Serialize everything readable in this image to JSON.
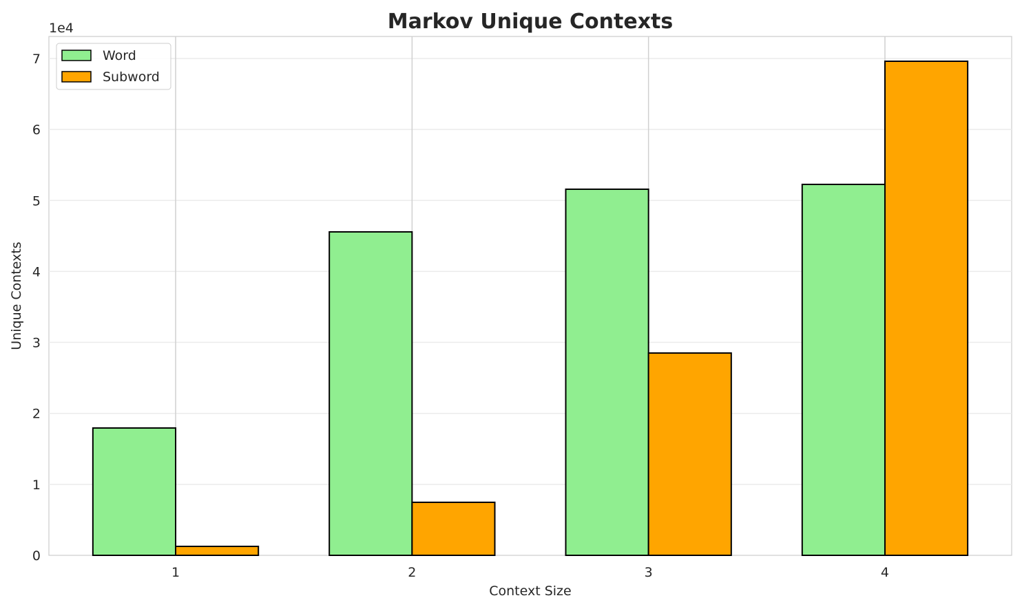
{
  "chart_data": {
    "type": "bar",
    "title": "Markov Unique Contexts",
    "xlabel": "Context Size",
    "ylabel": "Unique Contexts",
    "y_offset_label": "1e4",
    "categories": [
      "1",
      "2",
      "3",
      "4"
    ],
    "series": [
      {
        "name": "Word",
        "color": "#90ee90",
        "values": [
          17940,
          45570,
          51580,
          52260
        ]
      },
      {
        "name": "Subword",
        "color": "#ffa500",
        "values": [
          1260,
          7470,
          28500,
          69610
        ]
      }
    ],
    "yticks": [
      0,
      10000,
      20000,
      30000,
      40000,
      50000,
      60000,
      70000
    ],
    "ytick_labels": [
      "0",
      "1",
      "2",
      "3",
      "4",
      "5",
      "6",
      "7"
    ],
    "ylim": [
      0,
      73100
    ],
    "grid": true,
    "legend_position": "top-left"
  }
}
